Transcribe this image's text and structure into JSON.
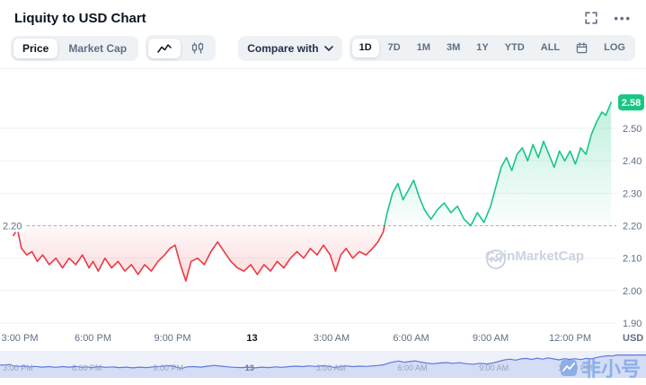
{
  "header": {
    "title": "Liquity to USD Chart"
  },
  "icons": {
    "more": "•••"
  },
  "toolbar": {
    "metric_tabs": [
      {
        "label": "Price",
        "active": true
      },
      {
        "label": "Market Cap",
        "active": false
      }
    ],
    "compare_label": "Compare with",
    "ranges": [
      {
        "label": "1D",
        "active": true
      },
      {
        "label": "7D",
        "active": false
      },
      {
        "label": "1M",
        "active": false
      },
      {
        "label": "3M",
        "active": false
      },
      {
        "label": "1Y",
        "active": false
      },
      {
        "label": "YTD",
        "active": false
      },
      {
        "label": "ALL",
        "active": false
      }
    ],
    "log_label": "LOG"
  },
  "watermark": {
    "text": "CoinMarketCap"
  },
  "site_watermark": {
    "text": "非小号"
  },
  "chart_data": {
    "type": "line",
    "title": "Liquity to USD Chart",
    "unit": "USD",
    "baseline": 2.2,
    "current_price": 2.58,
    "ylim": [
      1.86,
      2.64
    ],
    "y_ticks": [
      2.5,
      2.4,
      2.3,
      2.2,
      2.1,
      2.0,
      1.9
    ],
    "x_ticks": [
      {
        "t": 0,
        "label": "3:00 PM",
        "bold": false
      },
      {
        "t": 3,
        "label": "6:00 PM",
        "bold": false
      },
      {
        "t": 6,
        "label": "9:00 PM",
        "bold": false
      },
      {
        "t": 9,
        "label": "13",
        "bold": true
      },
      {
        "t": 12,
        "label": "3:00 AM",
        "bold": false
      },
      {
        "t": 15,
        "label": "6:00 AM",
        "bold": false
      },
      {
        "t": 18,
        "label": "9:00 AM",
        "bold": false
      },
      {
        "t": 21,
        "label": "12:00 PM",
        "bold": false
      }
    ],
    "colors": {
      "up": "#16c784",
      "down": "#ea3943",
      "navigator": "#5f78dd",
      "baseline_dash": "#a6b0c3",
      "grid": "#eff2f5"
    },
    "points": [
      [
        0,
        2.17
      ],
      [
        0.15,
        2.19
      ],
      [
        0.3,
        2.13
      ],
      [
        0.5,
        2.11
      ],
      [
        0.7,
        2.12
      ],
      [
        0.9,
        2.09
      ],
      [
        1.1,
        2.11
      ],
      [
        1.35,
        2.08
      ],
      [
        1.6,
        2.1
      ],
      [
        1.85,
        2.07
      ],
      [
        2.1,
        2.1
      ],
      [
        2.35,
        2.08
      ],
      [
        2.6,
        2.11
      ],
      [
        2.85,
        2.07
      ],
      [
        3.0,
        2.09
      ],
      [
        3.2,
        2.06
      ],
      [
        3.45,
        2.1
      ],
      [
        3.7,
        2.07
      ],
      [
        3.95,
        2.09
      ],
      [
        4.2,
        2.06
      ],
      [
        4.45,
        2.08
      ],
      [
        4.7,
        2.05
      ],
      [
        4.95,
        2.08
      ],
      [
        5.2,
        2.06
      ],
      [
        5.45,
        2.09
      ],
      [
        5.7,
        2.11
      ],
      [
        5.9,
        2.13
      ],
      [
        6.1,
        2.14
      ],
      [
        6.3,
        2.08
      ],
      [
        6.5,
        2.03
      ],
      [
        6.7,
        2.09
      ],
      [
        6.95,
        2.1
      ],
      [
        7.2,
        2.08
      ],
      [
        7.45,
        2.12
      ],
      [
        7.7,
        2.15
      ],
      [
        7.95,
        2.12
      ],
      [
        8.2,
        2.09
      ],
      [
        8.45,
        2.07
      ],
      [
        8.7,
        2.06
      ],
      [
        8.95,
        2.08
      ],
      [
        9.2,
        2.05
      ],
      [
        9.45,
        2.08
      ],
      [
        9.7,
        2.06
      ],
      [
        9.95,
        2.09
      ],
      [
        10.2,
        2.07
      ],
      [
        10.45,
        2.1
      ],
      [
        10.7,
        2.12
      ],
      [
        10.95,
        2.1
      ],
      [
        11.2,
        2.13
      ],
      [
        11.45,
        2.11
      ],
      [
        11.7,
        2.14
      ],
      [
        11.95,
        2.11
      ],
      [
        12.15,
        2.06
      ],
      [
        12.35,
        2.11
      ],
      [
        12.55,
        2.13
      ],
      [
        12.8,
        2.1
      ],
      [
        13.05,
        2.12
      ],
      [
        13.3,
        2.11
      ],
      [
        13.55,
        2.13
      ],
      [
        13.75,
        2.15
      ],
      [
        13.95,
        2.18
      ],
      [
        14.1,
        2.24
      ],
      [
        14.3,
        2.3
      ],
      [
        14.5,
        2.33
      ],
      [
        14.7,
        2.28
      ],
      [
        14.9,
        2.31
      ],
      [
        15.1,
        2.34
      ],
      [
        15.3,
        2.29
      ],
      [
        15.5,
        2.25
      ],
      [
        15.75,
        2.22
      ],
      [
        16.0,
        2.25
      ],
      [
        16.25,
        2.27
      ],
      [
        16.5,
        2.24
      ],
      [
        16.75,
        2.26
      ],
      [
        17.0,
        2.22
      ],
      [
        17.25,
        2.2
      ],
      [
        17.5,
        2.24
      ],
      [
        17.75,
        2.21
      ],
      [
        18.0,
        2.26
      ],
      [
        18.2,
        2.32
      ],
      [
        18.4,
        2.38
      ],
      [
        18.6,
        2.41
      ],
      [
        18.8,
        2.37
      ],
      [
        19.0,
        2.42
      ],
      [
        19.2,
        2.44
      ],
      [
        19.4,
        2.4
      ],
      [
        19.6,
        2.45
      ],
      [
        19.8,
        2.41
      ],
      [
        20.0,
        2.46
      ],
      [
        20.2,
        2.42
      ],
      [
        20.4,
        2.38
      ],
      [
        20.6,
        2.43
      ],
      [
        20.8,
        2.4
      ],
      [
        21.0,
        2.43
      ],
      [
        21.2,
        2.39
      ],
      [
        21.4,
        2.44
      ],
      [
        21.6,
        2.42
      ],
      [
        21.8,
        2.48
      ],
      [
        22.0,
        2.52
      ],
      [
        22.2,
        2.55
      ],
      [
        22.35,
        2.54
      ],
      [
        22.55,
        2.58
      ]
    ]
  }
}
